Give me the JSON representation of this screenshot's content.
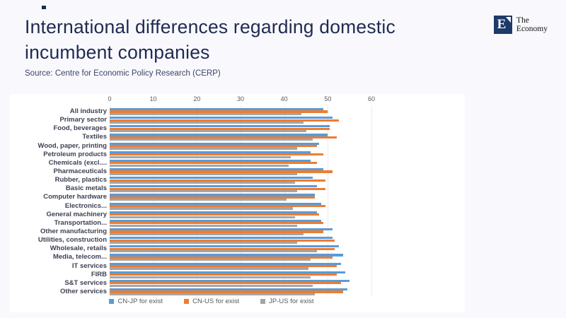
{
  "header": {
    "title": "International differences regarding domestic incumbent companies",
    "source": "Source: Centre for Economic Policy Research (CERP)"
  },
  "logo": {
    "mark_letter": "E",
    "name_line1": "The",
    "name_line2": "Economy"
  },
  "colors": {
    "title_navy": "#1F2A52",
    "logo_navy": "#1E3A68",
    "background": "#F9F9FD",
    "panel": "#FFFFFF",
    "series_blue": "#5B9BD5",
    "series_orange": "#ED7D31",
    "series_gray": "#A5A5A5"
  },
  "chart_data": {
    "type": "bar",
    "orientation": "horizontal",
    "title": "",
    "xlabel": "",
    "ylabel": "",
    "xlim": [
      0,
      60
    ],
    "x_ticks": [
      0,
      10,
      20,
      30,
      40,
      50,
      60
    ],
    "axis_position": "top",
    "grid": true,
    "legend_position": "bottom",
    "categories": [
      "All industry",
      "Primary sector",
      "Food, beverages",
      "Textiles",
      "Wood, paper, printing",
      "Petroleum products",
      "Chemicals (excl....",
      "Pharmaceuticals",
      "Rubber, plastics",
      "Basic metals",
      "Computer hardware",
      "Electronics...",
      "General machinery",
      "Transportation...",
      "Other manufacturing",
      "Utilities, construction",
      "Wholesale, retails",
      "Media, telecom...",
      "IT services",
      "FIRB",
      "S&T services",
      "Other services"
    ],
    "series": [
      {
        "name": "CN-JP for exist",
        "color": "#5B9BD5",
        "values": [
          49,
          51,
          50.5,
          50,
          48,
          46,
          46,
          49,
          46.5,
          47.5,
          47,
          48.5,
          47.5,
          48.5,
          51,
          51,
          52.5,
          53.5,
          53,
          54,
          55,
          54.5
        ]
      },
      {
        "name": "CN-US for exist",
        "color": "#ED7D31",
        "values": [
          50,
          52.5,
          50.5,
          52,
          47.5,
          49,
          47.5,
          51,
          49.5,
          49.5,
          47,
          49.5,
          48,
          49,
          49,
          51.5,
          51.5,
          51,
          52,
          52,
          53,
          53.5
        ]
      },
      {
        "name": "JP-US for exist",
        "color": "#A5A5A5",
        "values": [
          44,
          44.5,
          45,
          46.5,
          43,
          41.5,
          41,
          43,
          42.5,
          43,
          40.5,
          42,
          42.5,
          43,
          44.5,
          43,
          47.5,
          46,
          45.5,
          46,
          46.5,
          47
        ]
      }
    ]
  }
}
